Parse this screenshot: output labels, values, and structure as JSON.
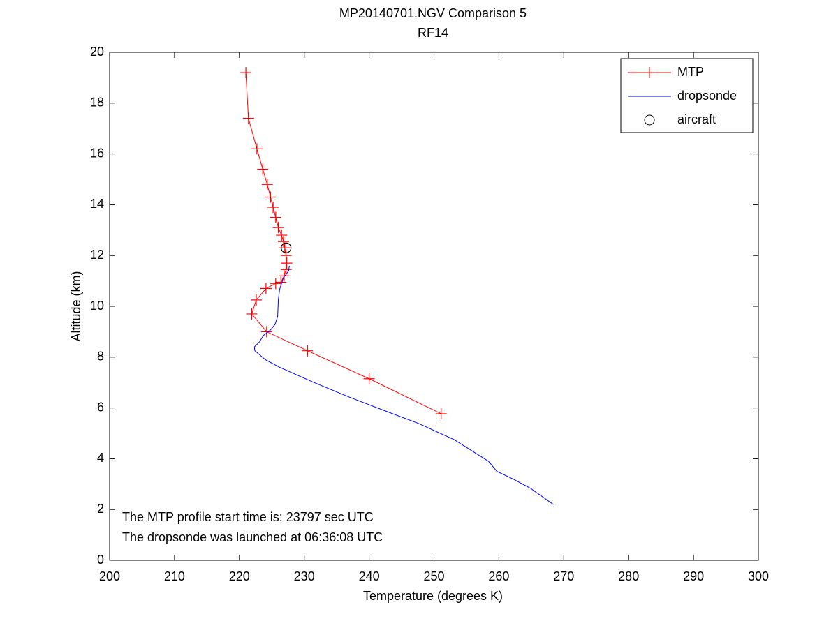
{
  "chart_data": {
    "type": "line",
    "title": "MP20140701.NGV Comparison 5",
    "subtitle": "RF14",
    "x_label": "Temperature (degrees K)",
    "y_label": "Altitude (km)",
    "xlim": [
      200,
      300
    ],
    "ylim": [
      0,
      20
    ],
    "xticks": [
      200,
      210,
      220,
      230,
      240,
      250,
      260,
      270,
      280,
      290,
      300
    ],
    "yticks": [
      0,
      2,
      4,
      6,
      8,
      10,
      12,
      14,
      16,
      18,
      20
    ],
    "grid": false,
    "legend": "upper right",
    "annotations": [
      "The MTP profile start time is: 23797 sec UTC",
      "The dropsonde was launched at 06:36:08 UTC"
    ],
    "series": [
      {
        "name": "MTP",
        "color": "#ff0000",
        "marker": "+",
        "line": true,
        "x": [
          221.0,
          221.4,
          222.7,
          223.6,
          224.3,
          224.8,
          225.2,
          225.6,
          226.0,
          226.5,
          226.8,
          227.0,
          227.2,
          227.3,
          227.2,
          226.9,
          226.4,
          225.6,
          224.1,
          222.6,
          221.9,
          224.2,
          230.5,
          240.0,
          251.1
        ],
        "values": [
          19.2,
          17.4,
          16.2,
          15.4,
          14.8,
          14.3,
          13.9,
          13.5,
          13.1,
          12.8,
          12.55,
          12.3,
          12.0,
          11.7,
          11.45,
          11.2,
          10.95,
          10.9,
          10.7,
          10.25,
          9.7,
          9.0,
          8.25,
          7.15,
          5.77
        ]
      },
      {
        "name": "dropsonde",
        "color": "#0000ff",
        "marker": "none",
        "line": true,
        "x": [
          268.4,
          264.9,
          262.2,
          259.7,
          258.4,
          253.1,
          247.7,
          242.3,
          236.9,
          231.5,
          226.2,
          224.0,
          222.4,
          222.3,
          223.1,
          223.7,
          224.8,
          225.5,
          225.9,
          226.0,
          226.2,
          226.8,
          227.6,
          227.7
        ],
        "values": [
          2.2,
          2.83,
          3.2,
          3.5,
          3.9,
          4.75,
          5.38,
          5.9,
          6.43,
          7.0,
          7.6,
          7.9,
          8.25,
          8.4,
          8.6,
          8.85,
          9.07,
          9.29,
          9.6,
          10.25,
          10.66,
          11.13,
          11.4,
          11.6
        ]
      },
      {
        "name": "aircraft",
        "color": "#000000",
        "marker": "o",
        "line": false,
        "x": [
          227.2
        ],
        "values": [
          12.3
        ]
      }
    ]
  }
}
